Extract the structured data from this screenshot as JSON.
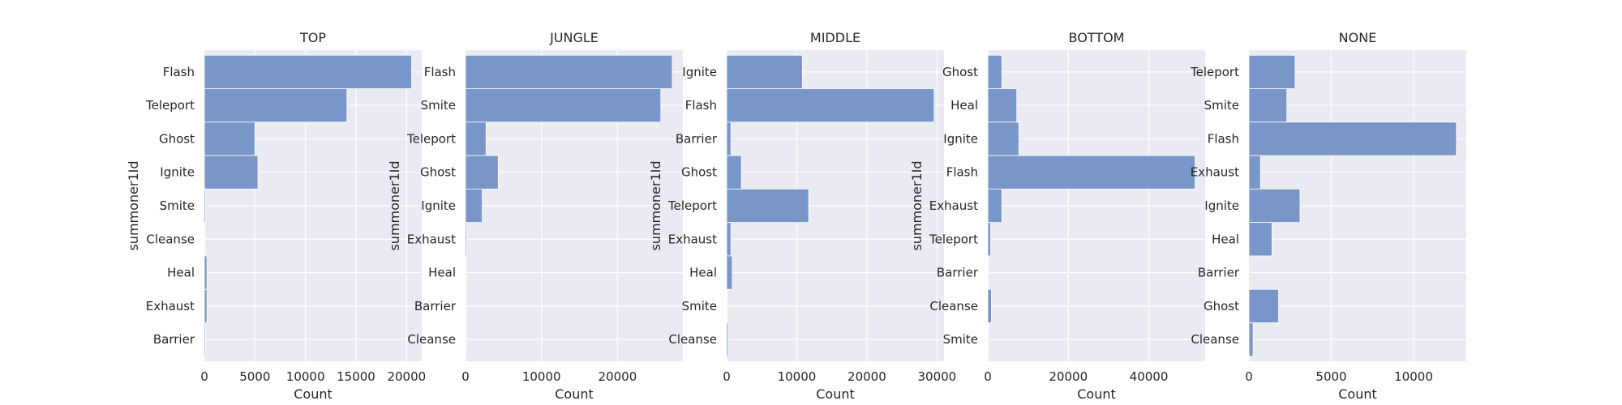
{
  "chart_data": [
    {
      "type": "bar",
      "orientation": "horizontal",
      "title": "TOP",
      "xlabel": "Count",
      "ylabel": "summoner1Id",
      "categories": [
        "Flash",
        "Teleport",
        "Ghost",
        "Ignite",
        "Smite",
        "Cleanse",
        "Heal",
        "Exhaust",
        "Barrier"
      ],
      "values": [
        20500,
        14100,
        5000,
        5300,
        120,
        60,
        250,
        250,
        100
      ],
      "xticks": [
        0,
        5000,
        10000,
        15000,
        20000
      ],
      "xlim": [
        0,
        21500
      ],
      "bar_color": "#7594c7",
      "grid": true
    },
    {
      "type": "bar",
      "orientation": "horizontal",
      "title": "JUNGLE",
      "xlabel": "Count",
      "ylabel": "summoner1Id",
      "categories": [
        "Flash",
        "Smite",
        "Teleport",
        "Ghost",
        "Ignite",
        "Exhaust",
        "Heal",
        "Barrier",
        "Cleanse"
      ],
      "values": [
        27200,
        25700,
        2700,
        4300,
        2200,
        150,
        80,
        50,
        40
      ],
      "xticks": [
        0,
        10000,
        20000
      ],
      "xlim": [
        0,
        28600
      ],
      "bar_color": "#7594c7",
      "grid": true
    },
    {
      "type": "bar",
      "orientation": "horizontal",
      "title": "MIDDLE",
      "xlabel": "Count",
      "ylabel": "summoner1Id",
      "categories": [
        "Ignite",
        "Flash",
        "Barrier",
        "Ghost",
        "Teleport",
        "Exhaust",
        "Heal",
        "Smite",
        "Cleanse"
      ],
      "values": [
        10800,
        29600,
        600,
        2100,
        11700,
        600,
        800,
        80,
        200
      ],
      "xticks": [
        0,
        10000,
        20000,
        30000
      ],
      "xlim": [
        0,
        31000
      ],
      "bar_color": "#7594c7",
      "grid": true
    },
    {
      "type": "bar",
      "orientation": "horizontal",
      "title": "BOTTOM",
      "xlabel": "Count",
      "ylabel": "summoner1Id",
      "categories": [
        "Ghost",
        "Heal",
        "Ignite",
        "Flash",
        "Exhaust",
        "Teleport",
        "Barrier",
        "Cleanse",
        "Smite"
      ],
      "values": [
        3500,
        7200,
        7700,
        51500,
        3500,
        700,
        100,
        900,
        50
      ],
      "xticks": [
        0,
        20000,
        40000
      ],
      "xlim": [
        0,
        54000
      ],
      "bar_color": "#7594c7",
      "grid": true
    },
    {
      "type": "bar",
      "orientation": "horizontal",
      "title": "NONE",
      "xlabel": "Count",
      "ylabel": "",
      "categories": [
        "Teleport",
        "Smite",
        "Flash",
        "Exhaust",
        "Ignite",
        "Heal",
        "Barrier",
        "Ghost",
        "Cleanse"
      ],
      "values": [
        2800,
        2300,
        12600,
        700,
        3100,
        1400,
        50,
        1800,
        250
      ],
      "xticks": [
        0,
        5000,
        10000
      ],
      "xlim": [
        0,
        13200
      ],
      "bar_color": "#7594c7",
      "grid": true
    }
  ]
}
